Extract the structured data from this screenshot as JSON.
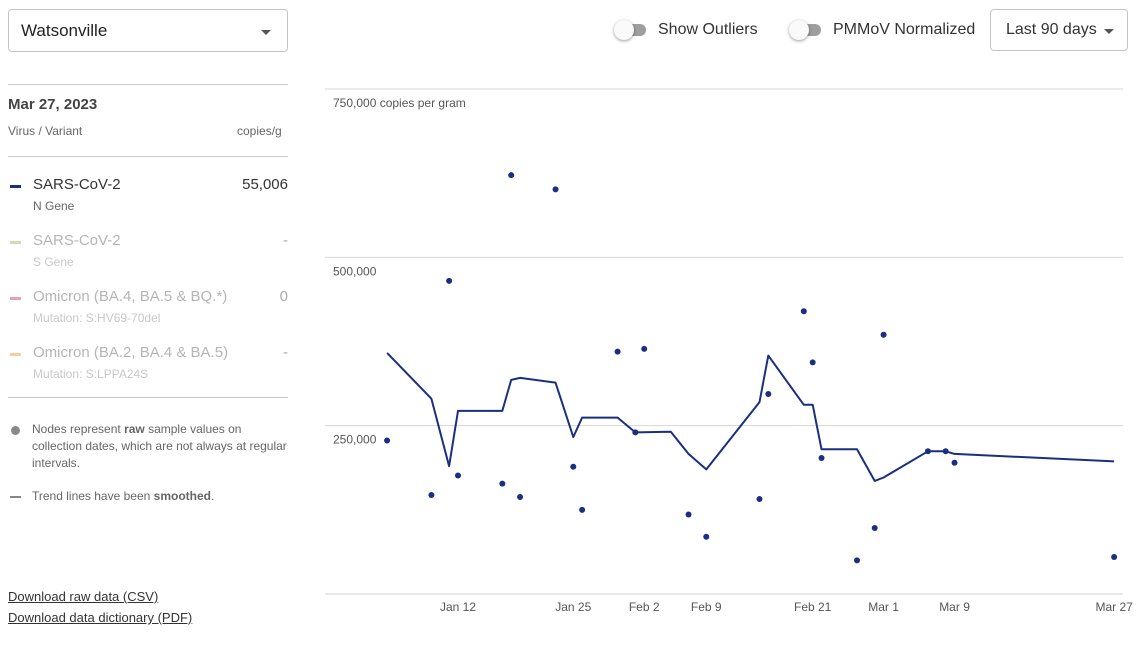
{
  "site_selector": {
    "value": "Watsonville"
  },
  "toggles": [
    {
      "label": "Show Outliers",
      "on": false
    },
    {
      "label": "PMMoV Normalized",
      "on": false
    }
  ],
  "range_selector": {
    "value": "Last 90 days"
  },
  "panel": {
    "date": "Mar 27, 2023",
    "col_virus": "Virus / Variant",
    "col_units": "copies/g",
    "variants": [
      {
        "name": "SARS-CoV-2",
        "sub": "N Gene",
        "value": "55,006",
        "color": "#1a2f80",
        "active": true
      },
      {
        "name": "SARS-CoV-2",
        "sub": "S Gene",
        "value": "-",
        "color": "#d3dbb3",
        "active": false
      },
      {
        "name": "Omicron (BA.4, BA.5 & BQ.*)",
        "sub": "Mutation: S:HV69-70del",
        "value": "0",
        "color": "#e4a3b4",
        "active": false
      },
      {
        "name": "Omicron (BA.2, BA.4 & BA.5)",
        "sub": "Mutation: S:LPPA24S",
        "value": "-",
        "color": "#f3cf9b",
        "active": false
      }
    ],
    "notes": {
      "nodes_pre": "Nodes represent ",
      "nodes_bold": "raw",
      "nodes_post": " sample values on collection dates, which are not always at regular intervals.",
      "trend_pre": "Trend lines have been ",
      "trend_bold": "smoothed",
      "trend_post": "."
    },
    "downloads": {
      "csv": "Download raw data (CSV)",
      "dictionary": "Download data dictionary (PDF)"
    }
  },
  "chart_data": {
    "type": "line",
    "ylabel": "copies per gram",
    "ylim": [
      0,
      750000
    ],
    "xlim": [
      "2022-12-28",
      "2023-03-28"
    ],
    "y_ticks": [
      {
        "value": 250000,
        "label": "250,000"
      },
      {
        "value": 500000,
        "label": "500,000"
      },
      {
        "value": 750000,
        "label": "750,000 copies per gram"
      }
    ],
    "x_ticks": [
      {
        "date": "2023-01-12",
        "label": "Jan 12"
      },
      {
        "date": "2023-01-25",
        "label": "Jan 25"
      },
      {
        "date": "2023-02-02",
        "label": "Feb 2"
      },
      {
        "date": "2023-02-09",
        "label": "Feb 9"
      },
      {
        "date": "2023-02-21",
        "label": "Feb 21"
      },
      {
        "date": "2023-03-01",
        "label": "Mar 1"
      },
      {
        "date": "2023-03-09",
        "label": "Mar 9"
      },
      {
        "date": "2023-03-27",
        "label": "Mar 27"
      }
    ],
    "grid": true,
    "series": [
      {
        "kind": "trend",
        "color": "#1a2f80",
        "points": [
          {
            "x": "2023-01-04",
            "y": 358000
          },
          {
            "x": "2023-01-09",
            "y": 290000
          },
          {
            "x": "2023-01-11",
            "y": 190000
          },
          {
            "x": "2023-01-12",
            "y": 272000
          },
          {
            "x": "2023-01-17",
            "y": 272000
          },
          {
            "x": "2023-01-18",
            "y": 318000
          },
          {
            "x": "2023-01-19",
            "y": 321000
          },
          {
            "x": "2023-01-23",
            "y": 314000
          },
          {
            "x": "2023-01-25",
            "y": 233000
          },
          {
            "x": "2023-01-26",
            "y": 262000
          },
          {
            "x": "2023-01-30",
            "y": 262000
          },
          {
            "x": "2023-02-01",
            "y": 240000
          },
          {
            "x": "2023-02-05",
            "y": 241000
          },
          {
            "x": "2023-02-07",
            "y": 208000
          },
          {
            "x": "2023-02-09",
            "y": 185000
          },
          {
            "x": "2023-02-15",
            "y": 285000
          },
          {
            "x": "2023-02-16",
            "y": 354000
          },
          {
            "x": "2023-02-20",
            "y": 281000
          },
          {
            "x": "2023-02-21",
            "y": 281000
          },
          {
            "x": "2023-02-22",
            "y": 215000
          },
          {
            "x": "2023-02-26",
            "y": 215000
          },
          {
            "x": "2023-02-28",
            "y": 168000
          },
          {
            "x": "2023-03-01",
            "y": 173000
          },
          {
            "x": "2023-03-06",
            "y": 212000
          },
          {
            "x": "2023-03-08",
            "y": 212000
          },
          {
            "x": "2023-03-09",
            "y": 208000
          },
          {
            "x": "2023-03-27",
            "y": 197000
          }
        ]
      },
      {
        "kind": "raw",
        "color": "#1a2f80",
        "points": [
          {
            "x": "2023-01-04",
            "y": 228000
          },
          {
            "x": "2023-01-09",
            "y": 147000
          },
          {
            "x": "2023-01-11",
            "y": 465000
          },
          {
            "x": "2023-01-12",
            "y": 176000
          },
          {
            "x": "2023-01-17",
            "y": 164000
          },
          {
            "x": "2023-01-18",
            "y": 622000
          },
          {
            "x": "2023-01-19",
            "y": 144000
          },
          {
            "x": "2023-01-23",
            "y": 601000
          },
          {
            "x": "2023-01-25",
            "y": 189000
          },
          {
            "x": "2023-01-26",
            "y": 125000
          },
          {
            "x": "2023-01-30",
            "y": 360000
          },
          {
            "x": "2023-02-01",
            "y": 240000
          },
          {
            "x": "2023-02-02",
            "y": 364000
          },
          {
            "x": "2023-02-07",
            "y": 118000
          },
          {
            "x": "2023-02-09",
            "y": 85000
          },
          {
            "x": "2023-02-15",
            "y": 141000
          },
          {
            "x": "2023-02-16",
            "y": 297000
          },
          {
            "x": "2023-02-20",
            "y": 420000
          },
          {
            "x": "2023-02-21",
            "y": 344000
          },
          {
            "x": "2023-02-22",
            "y": 202000
          },
          {
            "x": "2023-02-26",
            "y": 50000
          },
          {
            "x": "2023-02-28",
            "y": 98000
          },
          {
            "x": "2023-03-01",
            "y": 385000
          },
          {
            "x": "2023-03-06",
            "y": 212000
          },
          {
            "x": "2023-03-08",
            "y": 212000
          },
          {
            "x": "2023-03-09",
            "y": 195000
          },
          {
            "x": "2023-03-27",
            "y": 55000
          }
        ]
      }
    ]
  }
}
